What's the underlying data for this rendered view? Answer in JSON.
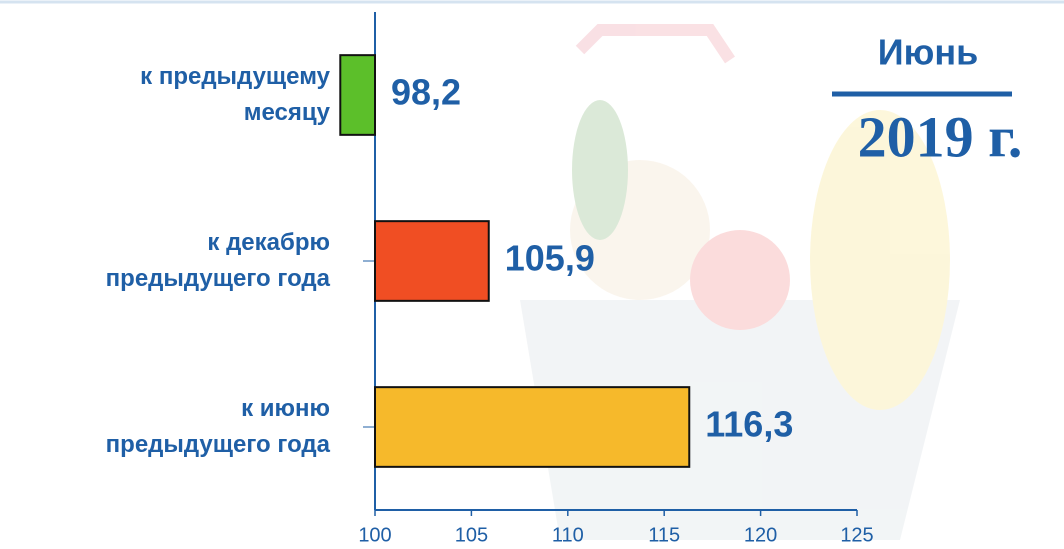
{
  "chart_data": {
    "type": "bar",
    "orientation": "horizontal",
    "title": "Июнь",
    "subtitle": "2019 г.",
    "categories": [
      "к предыдущему\nмесяцу",
      "к декабрю\nпредыдущего года",
      "к июню\nпредыдущего года"
    ],
    "values": [
      98.2,
      105.9,
      116.3
    ],
    "value_labels": [
      "98,2",
      "105,9",
      "116,3"
    ],
    "colors": [
      "#5cbf2a",
      "#f04e23",
      "#f6b92b"
    ],
    "xlim": [
      100,
      125
    ],
    "xticks": [
      100,
      105,
      110,
      115,
      120,
      125
    ],
    "grid": false
  }
}
